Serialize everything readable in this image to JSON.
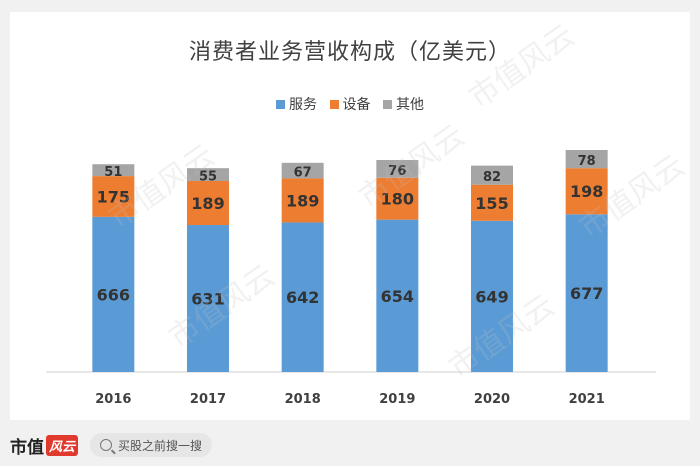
{
  "chart_data": {
    "type": "bar",
    "stacked": true,
    "title": "消费者业务营收构成（亿美元）",
    "categories": [
      "2016",
      "2017",
      "2018",
      "2019",
      "2020",
      "2021"
    ],
    "series": [
      {
        "name": "服务",
        "color": "#5b9bd5",
        "values": [
          666,
          631,
          642,
          654,
          649,
          677
        ]
      },
      {
        "name": "设备",
        "color": "#ed7d31",
        "values": [
          175,
          189,
          189,
          180,
          155,
          198
        ]
      },
      {
        "name": "其他",
        "color": "#a5a5a5",
        "values": [
          51,
          55,
          67,
          76,
          82,
          78
        ]
      }
    ],
    "legend_position": "top",
    "grid": false
  },
  "watermark": {
    "text": "市值风云"
  },
  "footer": {
    "brand_text": "市值",
    "brand_seal": "风云",
    "search_icon": "search-icon",
    "search_placeholder": "买股之前搜一搜"
  }
}
